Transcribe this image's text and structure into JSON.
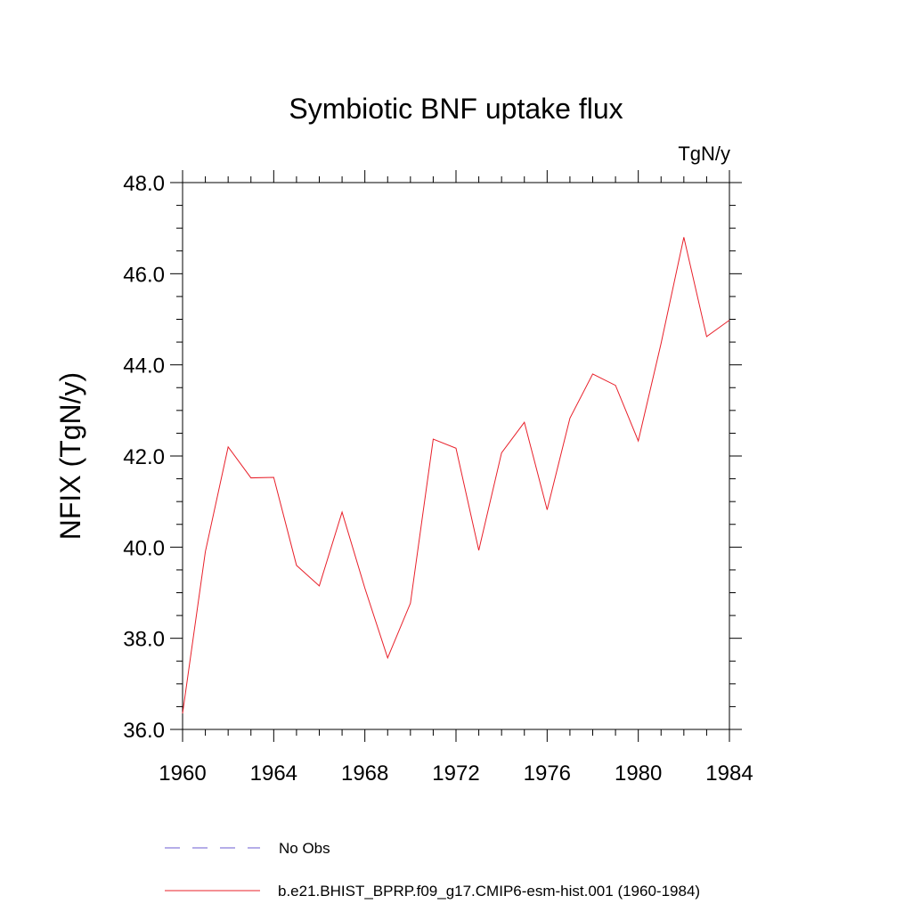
{
  "chart_data": {
    "type": "line",
    "title": "Symbiotic BNF uptake flux",
    "units": "TgN/y",
    "ylabel": "NFIX  (TgN/y)",
    "xlabel": "",
    "xlim": [
      1960,
      1984
    ],
    "ylim": [
      36.0,
      48.0
    ],
    "x_ticks": [
      1960,
      1964,
      1968,
      1972,
      1976,
      1980,
      1984
    ],
    "y_ticks": [
      "36.0",
      "38.0",
      "40.0",
      "42.0",
      "44.0",
      "46.0",
      "48.0"
    ],
    "grid": false,
    "legend_position": "bottom",
    "series": [
      {
        "name": "No Obs",
        "color": "#6b5bd2",
        "style": "dashed",
        "x": [],
        "y": []
      },
      {
        "name": "b.e21.BHIST_BPRP.f09_g17.CMIP6-esm-hist.001 (1960-1984)",
        "color": "#e8202a",
        "style": "solid",
        "x": [
          1960,
          1961,
          1962,
          1963,
          1964,
          1965,
          1966,
          1967,
          1968,
          1969,
          1970,
          1971,
          1972,
          1973,
          1974,
          1975,
          1976,
          1977,
          1978,
          1979,
          1980,
          1981,
          1982,
          1983,
          1984
        ],
        "y": [
          36.35,
          39.9,
          42.2,
          41.52,
          41.53,
          39.6,
          39.15,
          40.77,
          39.1,
          37.57,
          38.77,
          42.37,
          42.17,
          39.93,
          42.07,
          42.74,
          40.82,
          42.83,
          43.8,
          43.55,
          42.33,
          44.47,
          46.8,
          44.62,
          44.98
        ]
      }
    ]
  }
}
